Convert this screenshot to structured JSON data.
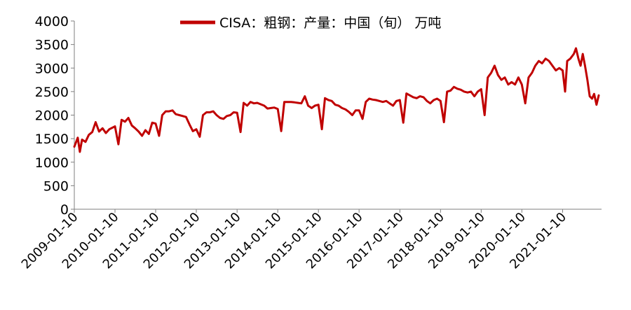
{
  "legend": {
    "label": "CISA：粗钢：产量：中国（旬） 万吨"
  },
  "chart_data": {
    "type": "line",
    "title": "",
    "xlabel": "",
    "ylabel": "",
    "ylim": [
      0,
      4000
    ],
    "yticks": [
      0,
      500,
      1000,
      1500,
      2000,
      2500,
      3000,
      3500,
      4000
    ],
    "xticks": [
      "2009-01-10",
      "2010-01-10",
      "2011-01-10",
      "2012-01-10",
      "2013-01-10",
      "2014-01-10",
      "2015-01-10",
      "2016-01-10",
      "2017-01-10",
      "2018-01-10",
      "2019-01-10",
      "2020-01-10",
      "2021-01-10"
    ],
    "legend_position": "top",
    "grid": false,
    "series": [
      {
        "name": "CISA：粗钢：产量：中国（旬） 万吨",
        "color": "#C00000",
        "points": [
          [
            "2009-01-10",
            1330
          ],
          [
            "2009-02-10",
            1520
          ],
          [
            "2009-03-01",
            1220
          ],
          [
            "2009-03-20",
            1480
          ],
          [
            "2009-04-20",
            1430
          ],
          [
            "2009-05-20",
            1580
          ],
          [
            "2009-06-20",
            1640
          ],
          [
            "2009-07-20",
            1850
          ],
          [
            "2009-08-20",
            1650
          ],
          [
            "2009-09-20",
            1720
          ],
          [
            "2009-10-20",
            1620
          ],
          [
            "2009-11-20",
            1700
          ],
          [
            "2010-01-10",
            1760
          ],
          [
            "2010-02-10",
            1380
          ],
          [
            "2010-03-10",
            1900
          ],
          [
            "2010-04-10",
            1860
          ],
          [
            "2010-05-10",
            1940
          ],
          [
            "2010-06-10",
            1780
          ],
          [
            "2010-07-10",
            1720
          ],
          [
            "2010-08-10",
            1650
          ],
          [
            "2010-09-10",
            1560
          ],
          [
            "2010-10-10",
            1680
          ],
          [
            "2010-11-10",
            1600
          ],
          [
            "2010-12-10",
            1840
          ],
          [
            "2011-01-10",
            1820
          ],
          [
            "2011-02-10",
            1560
          ],
          [
            "2011-03-10",
            2000
          ],
          [
            "2011-04-10",
            2080
          ],
          [
            "2011-05-10",
            2080
          ],
          [
            "2011-06-10",
            2100
          ],
          [
            "2011-07-10",
            2020
          ],
          [
            "2011-08-10",
            2000
          ],
          [
            "2011-09-10",
            1980
          ],
          [
            "2011-10-10",
            1960
          ],
          [
            "2011-11-10",
            1800
          ],
          [
            "2011-12-10",
            1660
          ],
          [
            "2012-01-10",
            1700
          ],
          [
            "2012-02-10",
            1540
          ],
          [
            "2012-03-10",
            2000
          ],
          [
            "2012-04-10",
            2060
          ],
          [
            "2012-05-10",
            2060
          ],
          [
            "2012-06-10",
            2080
          ],
          [
            "2012-07-10",
            2000
          ],
          [
            "2012-08-10",
            1940
          ],
          [
            "2012-09-10",
            1920
          ],
          [
            "2012-10-10",
            1980
          ],
          [
            "2012-11-10",
            2000
          ],
          [
            "2012-12-10",
            2060
          ],
          [
            "2013-01-10",
            2050
          ],
          [
            "2013-02-10",
            1640
          ],
          [
            "2013-03-10",
            2260
          ],
          [
            "2013-04-10",
            2200
          ],
          [
            "2013-05-10",
            2280
          ],
          [
            "2013-06-10",
            2250
          ],
          [
            "2013-07-10",
            2260
          ],
          [
            "2013-08-10",
            2230
          ],
          [
            "2013-09-10",
            2200
          ],
          [
            "2013-10-10",
            2140
          ],
          [
            "2013-11-10",
            2150
          ],
          [
            "2013-12-10",
            2160
          ],
          [
            "2014-01-10",
            2130
          ],
          [
            "2014-02-10",
            1660
          ],
          [
            "2014-03-10",
            2280
          ],
          [
            "2014-04-10",
            2280
          ],
          [
            "2014-05-10",
            2280
          ],
          [
            "2014-06-10",
            2270
          ],
          [
            "2014-07-10",
            2260
          ],
          [
            "2014-08-10",
            2250
          ],
          [
            "2014-09-10",
            2400
          ],
          [
            "2014-10-10",
            2200
          ],
          [
            "2014-11-10",
            2150
          ],
          [
            "2014-12-10",
            2200
          ],
          [
            "2015-01-10",
            2220
          ],
          [
            "2015-02-10",
            1700
          ],
          [
            "2015-03-10",
            2360
          ],
          [
            "2015-04-10",
            2320
          ],
          [
            "2015-05-10",
            2300
          ],
          [
            "2015-06-10",
            2220
          ],
          [
            "2015-07-10",
            2200
          ],
          [
            "2015-08-10",
            2150
          ],
          [
            "2015-09-10",
            2120
          ],
          [
            "2015-10-10",
            2070
          ],
          [
            "2015-11-10",
            2000
          ],
          [
            "2015-12-10",
            2100
          ],
          [
            "2016-01-10",
            2100
          ],
          [
            "2016-02-10",
            1920
          ],
          [
            "2016-03-10",
            2280
          ],
          [
            "2016-04-10",
            2350
          ],
          [
            "2016-05-10",
            2330
          ],
          [
            "2016-06-10",
            2320
          ],
          [
            "2016-07-10",
            2300
          ],
          [
            "2016-08-10",
            2280
          ],
          [
            "2016-09-10",
            2300
          ],
          [
            "2016-10-10",
            2250
          ],
          [
            "2016-11-10",
            2200
          ],
          [
            "2016-12-10",
            2300
          ],
          [
            "2017-01-10",
            2320
          ],
          [
            "2017-02-10",
            1840
          ],
          [
            "2017-03-10",
            2460
          ],
          [
            "2017-04-10",
            2420
          ],
          [
            "2017-05-10",
            2380
          ],
          [
            "2017-06-10",
            2360
          ],
          [
            "2017-07-10",
            2400
          ],
          [
            "2017-08-10",
            2380
          ],
          [
            "2017-09-10",
            2300
          ],
          [
            "2017-10-10",
            2250
          ],
          [
            "2017-11-10",
            2320
          ],
          [
            "2017-12-10",
            2350
          ],
          [
            "2018-01-10",
            2300
          ],
          [
            "2018-02-10",
            1850
          ],
          [
            "2018-03-10",
            2500
          ],
          [
            "2018-04-10",
            2520
          ],
          [
            "2018-05-10",
            2600
          ],
          [
            "2018-06-10",
            2560
          ],
          [
            "2018-07-10",
            2540
          ],
          [
            "2018-08-10",
            2500
          ],
          [
            "2018-09-10",
            2480
          ],
          [
            "2018-10-10",
            2500
          ],
          [
            "2018-11-10",
            2400
          ],
          [
            "2018-12-10",
            2500
          ],
          [
            "2019-01-10",
            2550
          ],
          [
            "2019-02-10",
            2000
          ],
          [
            "2019-03-10",
            2800
          ],
          [
            "2019-04-10",
            2900
          ],
          [
            "2019-05-10",
            3050
          ],
          [
            "2019-06-10",
            2850
          ],
          [
            "2019-07-10",
            2750
          ],
          [
            "2019-08-10",
            2800
          ],
          [
            "2019-09-10",
            2650
          ],
          [
            "2019-10-10",
            2700
          ],
          [
            "2019-11-10",
            2650
          ],
          [
            "2019-12-10",
            2800
          ],
          [
            "2020-01-10",
            2650
          ],
          [
            "2020-02-10",
            2250
          ],
          [
            "2020-03-10",
            2800
          ],
          [
            "2020-04-10",
            2900
          ],
          [
            "2020-05-10",
            3050
          ],
          [
            "2020-06-10",
            3150
          ],
          [
            "2020-07-10",
            3100
          ],
          [
            "2020-08-10",
            3200
          ],
          [
            "2020-09-10",
            3150
          ],
          [
            "2020-10-10",
            3050
          ],
          [
            "2020-11-10",
            2950
          ],
          [
            "2020-12-10",
            3000
          ],
          [
            "2021-01-10",
            2950
          ],
          [
            "2021-02-01",
            2500
          ],
          [
            "2021-02-20",
            3150
          ],
          [
            "2021-03-20",
            3200
          ],
          [
            "2021-04-20",
            3300
          ],
          [
            "2021-05-10",
            3420
          ],
          [
            "2021-06-01",
            3200
          ],
          [
            "2021-06-20",
            3050
          ],
          [
            "2021-07-10",
            3300
          ],
          [
            "2021-07-30",
            3050
          ],
          [
            "2021-08-20",
            2750
          ],
          [
            "2021-09-10",
            2400
          ],
          [
            "2021-10-01",
            2350
          ],
          [
            "2021-10-20",
            2450
          ],
          [
            "2021-11-10",
            2220
          ],
          [
            "2021-11-30",
            2420
          ]
        ]
      }
    ]
  }
}
